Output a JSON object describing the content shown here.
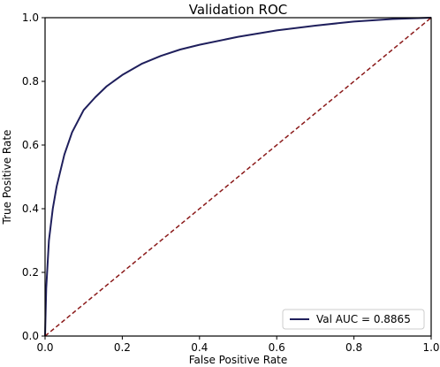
{
  "chart_data": {
    "type": "line",
    "title": "Validation ROC",
    "xlabel": "False Positive Rate",
    "ylabel": "True Positive Rate",
    "xlim": [
      0.0,
      1.0
    ],
    "ylim": [
      0.0,
      1.0
    ],
    "xticks": [
      "0.0",
      "0.2",
      "0.4",
      "0.6",
      "0.8",
      "1.0"
    ],
    "yticks": [
      "0.0",
      "0.2",
      "0.4",
      "0.6",
      "0.8",
      "1.0"
    ],
    "grid": false,
    "legend_position": "lower right",
    "series": [
      {
        "name": "Val AUC = 0.8865",
        "color": "#1f1f5c",
        "style": "solid",
        "x": [
          0.0,
          0.003,
          0.01,
          0.02,
          0.03,
          0.05,
          0.07,
          0.1,
          0.13,
          0.16,
          0.2,
          0.25,
          0.3,
          0.35,
          0.4,
          0.5,
          0.6,
          0.7,
          0.8,
          0.9,
          1.0
        ],
        "y": [
          0.0,
          0.15,
          0.3,
          0.4,
          0.47,
          0.57,
          0.64,
          0.71,
          0.75,
          0.785,
          0.82,
          0.855,
          0.88,
          0.9,
          0.915,
          0.94,
          0.96,
          0.975,
          0.988,
          0.996,
          1.0
        ]
      },
      {
        "name": "",
        "color": "#8b1a1a",
        "style": "dashed",
        "x": [
          0.0,
          1.0
        ],
        "y": [
          0.0,
          1.0
        ]
      }
    ]
  }
}
